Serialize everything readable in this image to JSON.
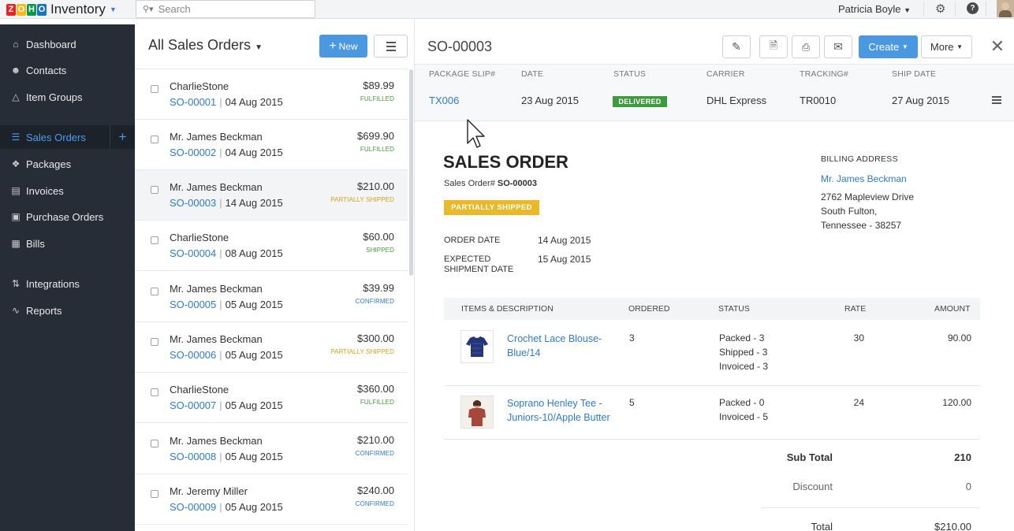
{
  "app": {
    "logo_letters": [
      "Z",
      "O",
      "H",
      "O"
    ],
    "logo_colors": [
      "#e42527",
      "#fdb913",
      "#089949",
      "#1a73c7"
    ],
    "name": "Inventory",
    "user": "Patricia Boyle"
  },
  "search": {
    "placeholder": "Search"
  },
  "sidebar": {
    "items": [
      {
        "label": "Dashboard",
        "icon": "home-icon"
      },
      {
        "label": "Contacts",
        "icon": "user-icon"
      },
      {
        "label": "Item Groups",
        "icon": "basket-icon"
      },
      {
        "label": "Sales Orders",
        "icon": "cart-icon",
        "active": true
      },
      {
        "label": "Packages",
        "icon": "package-icon"
      },
      {
        "label": "Invoices",
        "icon": "invoice-icon"
      },
      {
        "label": "Purchase Orders",
        "icon": "bag-icon"
      },
      {
        "label": "Bills",
        "icon": "bill-icon"
      },
      {
        "label": "Integrations",
        "icon": "integration-icon"
      },
      {
        "label": "Reports",
        "icon": "chart-icon"
      }
    ],
    "add_label": "+"
  },
  "list": {
    "title": "All Sales Orders",
    "new_label": "New",
    "orders": [
      {
        "customer": "CharlieStone",
        "number": "SO-00001",
        "date": "04 Aug 2015",
        "amount": "$89.99",
        "status": "FULFILLED",
        "status_color": "#4a9a3d"
      },
      {
        "customer": "Mr. James Beckman",
        "number": "SO-00002",
        "date": "04 Aug 2015",
        "amount": "$699.90",
        "status": "FULFILLED",
        "status_color": "#4a9a3d"
      },
      {
        "customer": "Mr. James Beckman",
        "number": "SO-00003",
        "date": "14 Aug 2015",
        "amount": "$210.00",
        "status": "PARTIALLY SHIPPED",
        "status_color": "#d4a21a",
        "selected": true
      },
      {
        "customer": "CharlieStone",
        "number": "SO-00004",
        "date": "08 Aug 2015",
        "amount": "$60.00",
        "status": "SHIPPED",
        "status_color": "#4a9a3d"
      },
      {
        "customer": "Mr. James Beckman",
        "number": "SO-00005",
        "date": "05 Aug 2015",
        "amount": "$39.99",
        "status": "CONFIRMED",
        "status_color": "#2f7bd0"
      },
      {
        "customer": "Mr. James Beckman",
        "number": "SO-00006",
        "date": "05 Aug 2015",
        "amount": "$300.00",
        "status": "PARTIALLY SHIPPED",
        "status_color": "#d4a21a"
      },
      {
        "customer": "CharlieStone",
        "number": "SO-00007",
        "date": "05 Aug 2015",
        "amount": "$360.00",
        "status": "FULFILLED",
        "status_color": "#4a9a3d"
      },
      {
        "customer": "Mr. James Beckman",
        "number": "SO-00008",
        "date": "05 Aug 2015",
        "amount": "$210.00",
        "status": "CONFIRMED",
        "status_color": "#2f7bd0"
      },
      {
        "customer": "Mr. Jeremy Miller",
        "number": "SO-00009",
        "date": "05 Aug 2015",
        "amount": "$240.00",
        "status": "CONFIRMED",
        "status_color": "#2f7bd0"
      }
    ]
  },
  "detail": {
    "title": "SO-00003",
    "create_label": "Create",
    "more_label": "More",
    "package": {
      "headers": [
        "PACKAGE SLIP#",
        "DATE",
        "STATUS",
        "CARRIER",
        "TRACKING#",
        "SHIP DATE"
      ],
      "slip": "TX006",
      "date": "23 Aug 2015",
      "status": "DELIVERED",
      "carrier": "DHL Express",
      "tracking": "TR0010",
      "ship_date": "27 Aug 2015"
    },
    "doc": {
      "title": "SALES ORDER",
      "order_label": "Sales Order#",
      "order_no": "SO-00003",
      "status": "PARTIALLY SHIPPED",
      "order_date_label": "ORDER DATE",
      "order_date": "14 Aug 2015",
      "expected_label_1": "EXPECTED",
      "expected_label_2": "SHIPMENT DATE",
      "expected_date": "15 Aug 2015",
      "billing": {
        "heading": "BILLING ADDRESS",
        "name": "Mr. James Beckman",
        "line1": "2762 Mapleview Drive",
        "line2": "South Fulton,",
        "line3": "Tennessee - 38257"
      },
      "table_headers": [
        "ITEMS & DESCRIPTION",
        "ORDERED",
        "STATUS",
        "RATE",
        "AMOUNT"
      ],
      "items": [
        {
          "name_1": "Crochet Lace Blouse-",
          "name_2": "Blue/14",
          "ordered": "3",
          "status": [
            "Packed - 3",
            "Shipped - 3",
            "Invoiced - 3"
          ],
          "rate": "30",
          "amount": "90.00",
          "thumb": "blue-blouse"
        },
        {
          "name_1": "Soprano Henley Tee -",
          "name_2": "Juniors-10/Apple Butter",
          "ordered": "5",
          "status": [
            "Packed - 0",
            "Invoiced - 5"
          ],
          "rate": "24",
          "amount": "120.00",
          "thumb": "brown-tee"
        }
      ],
      "subtotal_label": "Sub Total",
      "subtotal": "210",
      "discount_label": "Discount",
      "discount": "0",
      "total_label": "Total",
      "total": "$210.00"
    }
  }
}
